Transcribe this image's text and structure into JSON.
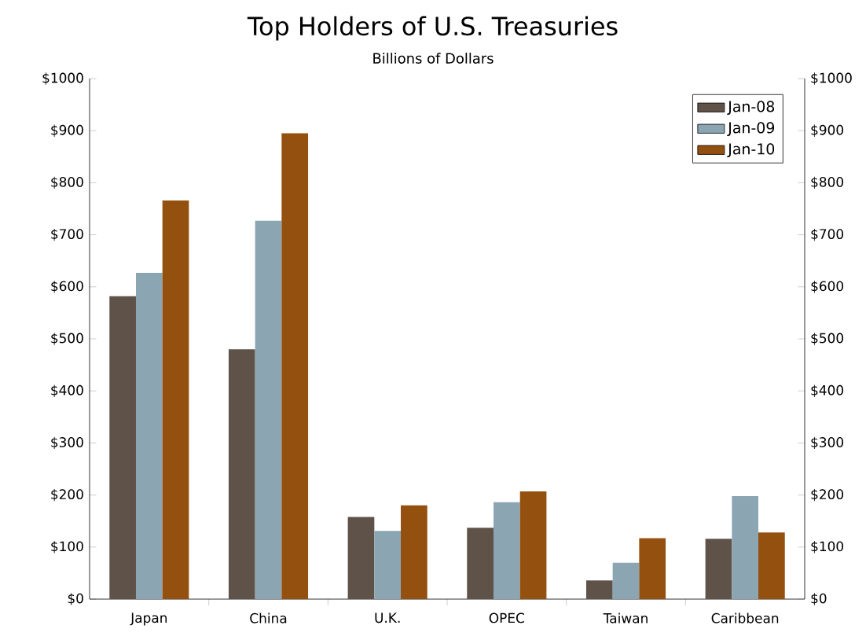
{
  "chart_data": {
    "type": "bar",
    "title": "Top Holders of U.S. Treasuries",
    "subtitle": "Billions of Dollars",
    "categories": [
      "Japan",
      "China",
      "U.K.",
      "OPEC",
      "Taiwan",
      "Caribbean"
    ],
    "series": [
      {
        "name": "Jan-08",
        "color": "#5f5248",
        "values": [
          582,
          480,
          158,
          137,
          36,
          116
        ]
      },
      {
        "name": "Jan-09",
        "color": "#8ca5b3",
        "values": [
          627,
          727,
          131,
          186,
          70,
          198
        ]
      },
      {
        "name": "Jan-10",
        "color": "#94500f",
        "values": [
          766,
          895,
          180,
          207,
          117,
          128
        ]
      }
    ],
    "ylim": [
      0,
      1000
    ],
    "yticks": [
      {
        "value": 0,
        "label": "$0"
      },
      {
        "value": 100,
        "label": "$100"
      },
      {
        "value": 200,
        "label": "$200"
      },
      {
        "value": 300,
        "label": "$300"
      },
      {
        "value": 400,
        "label": "$400"
      },
      {
        "value": 500,
        "label": "$500"
      },
      {
        "value": 600,
        "label": "$600"
      },
      {
        "value": 700,
        "label": "$700"
      },
      {
        "value": 800,
        "label": "$800"
      },
      {
        "value": 900,
        "label": "$900"
      },
      {
        "value": 1000,
        "label": "$1000"
      }
    ],
    "y2lim": [
      0,
      1000
    ],
    "y2ticks": [
      {
        "value": 0,
        "label": "$0"
      },
      {
        "value": 100,
        "label": "$100"
      },
      {
        "value": 200,
        "label": "$200"
      },
      {
        "value": 300,
        "label": "$300"
      },
      {
        "value": 400,
        "label": "$400"
      },
      {
        "value": 500,
        "label": "$500"
      },
      {
        "value": 600,
        "label": "$600"
      },
      {
        "value": 700,
        "label": "$700"
      },
      {
        "value": 800,
        "label": "$800"
      },
      {
        "value": 900,
        "label": "$900"
      },
      {
        "value": 1000,
        "label": "$1000"
      }
    ],
    "grid": false,
    "legend": "top right"
  }
}
